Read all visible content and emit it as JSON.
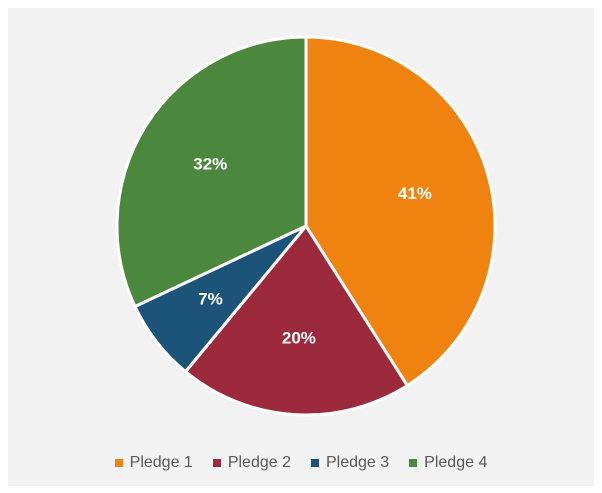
{
  "chart_data": {
    "type": "pie",
    "categories": [
      "Pledge 1",
      "Pledge 2",
      "Pledge 3",
      "Pledge 4"
    ],
    "values": [
      41,
      20,
      7,
      32
    ],
    "labels": [
      "41%",
      "20%",
      "7%",
      "32%"
    ],
    "colors": [
      "#f0830f",
      "#9c2a3c",
      "#1c5378",
      "#4b883e"
    ],
    "title": "",
    "legend_position": "bottom"
  }
}
